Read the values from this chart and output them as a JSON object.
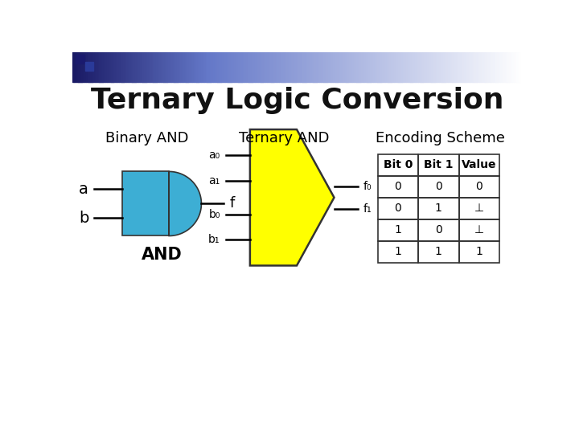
{
  "title": "Ternary Logic Conversion",
  "subtitle_binary": "Binary AND",
  "subtitle_ternary": "Ternary AND",
  "subtitle_encoding": "Encoding Scheme",
  "background_color": "#ffffff",
  "and_gate_color": "#3daed4",
  "ternary_gate_color": "#ffff00",
  "table_headers": [
    "Bit 0",
    "Bit 1",
    "Value"
  ],
  "table_rows": [
    [
      "0",
      "0",
      "0"
    ],
    [
      "0",
      "1",
      "⊥"
    ],
    [
      "1",
      "0",
      "⊥"
    ],
    [
      "1",
      "1",
      "1"
    ]
  ],
  "title_fontsize": 26,
  "subtitle_fontsize": 13,
  "label_fontsize": 13,
  "small_label_fontsize": 10,
  "table_fontsize": 10
}
